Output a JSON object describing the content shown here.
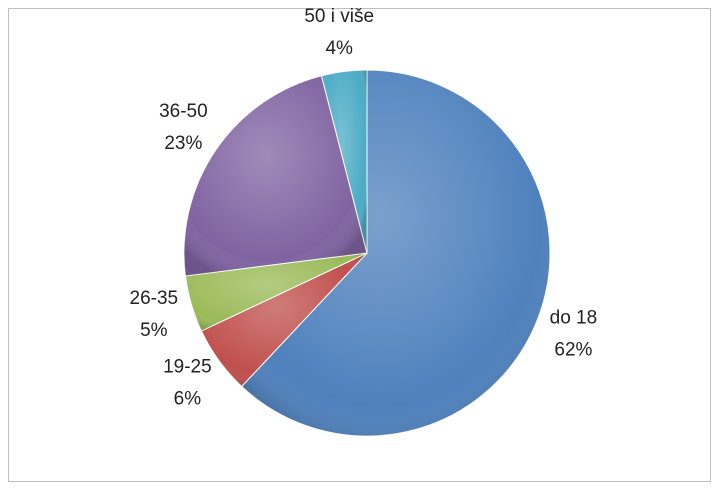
{
  "chart_data": {
    "type": "pie",
    "categories": [
      "do 18",
      "19-25",
      "26-35",
      "36-50",
      "50 i više"
    ],
    "values": [
      62,
      6,
      5,
      23,
      4
    ],
    "value_labels": [
      "62%",
      "6%",
      "5%",
      "23%",
      "4%"
    ],
    "colors": [
      "#4f81bd",
      "#c0504d",
      "#9bbb59",
      "#8064a2",
      "#4bacc6"
    ]
  }
}
